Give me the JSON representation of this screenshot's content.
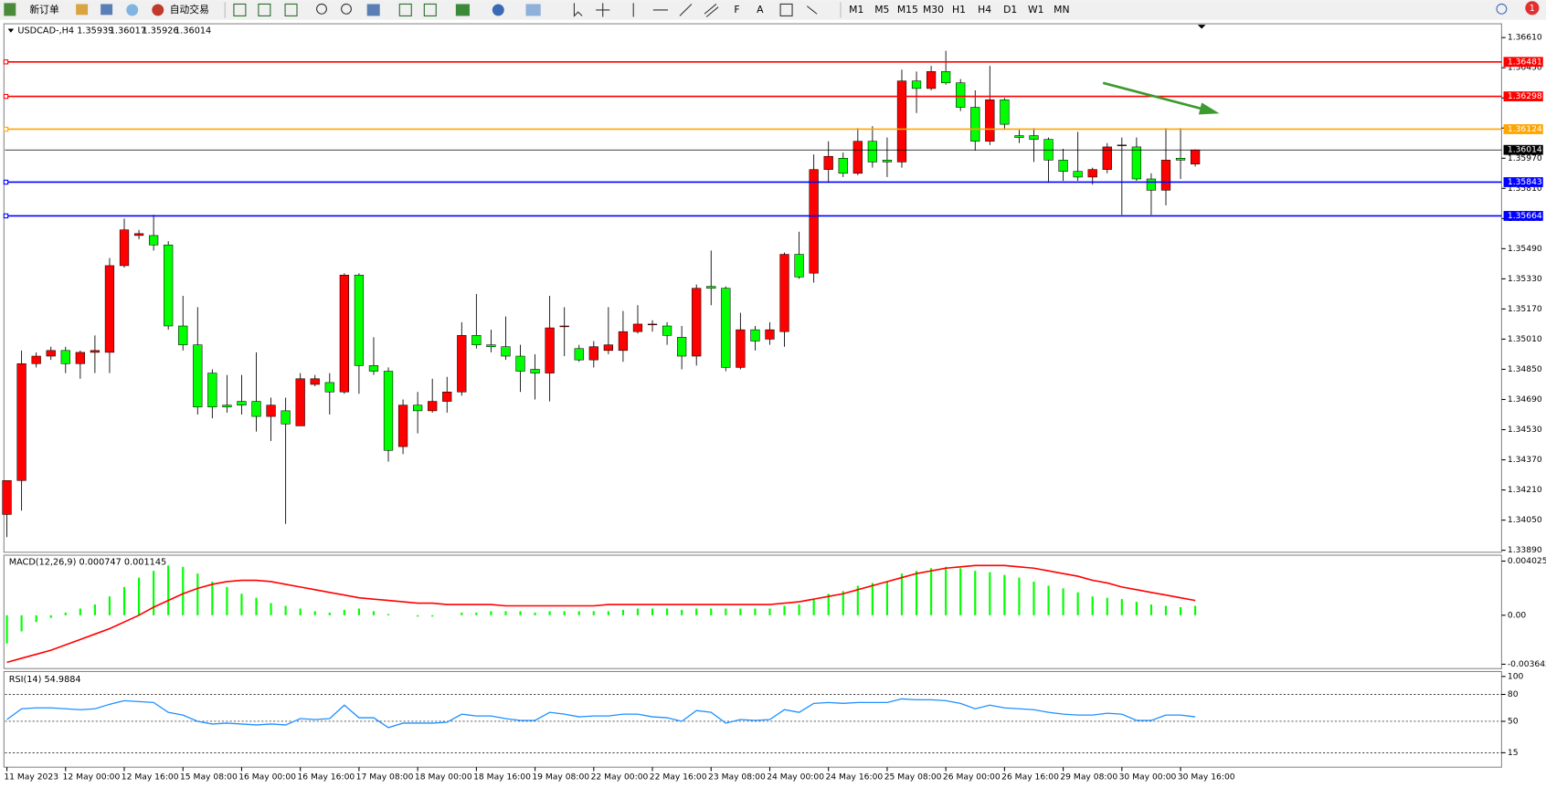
{
  "toolbar": {
    "new_order": "新订单",
    "auto_trading": "自动交易",
    "timeframes": [
      "M1",
      "M5",
      "M15",
      "M30",
      "H1",
      "H4",
      "D1",
      "W1",
      "MN"
    ],
    "notifications": 1
  },
  "chart_data": [
    {
      "type": "candlestick",
      "title": "USDCAD-,H4",
      "categories": [
        "11 May 2023",
        null,
        null,
        null,
        "12 May 00:00",
        null,
        null,
        null,
        "12 May 16:00",
        null,
        null,
        null,
        "15 May 08:00",
        null,
        null,
        null,
        "16 May 00:00",
        null,
        null,
        null,
        "16 May 16:00",
        null,
        null,
        null,
        "17 May 08:00",
        null,
        null,
        null,
        "18 May 00:00",
        null,
        null,
        null,
        "18 May 16:00",
        null,
        null,
        null,
        "19 May 08:00",
        null,
        null,
        null,
        "22 May 00:00",
        null,
        null,
        null,
        "22 May 16:00",
        null,
        null,
        null,
        "23 May 08:00",
        null,
        null,
        null,
        "24 May 00:00",
        null,
        null,
        null,
        "24 May 16:00",
        null,
        null,
        null,
        "25 May 08:00",
        null,
        null,
        null,
        "26 May 00:00",
        null,
        null,
        null,
        "26 May 16:00",
        null,
        null,
        null,
        "29 May 08:00",
        null,
        null,
        null,
        "30 May 00:00",
        null,
        null,
        null,
        "30 May 16:00",
        null
      ],
      "open": [
        1.3408,
        1.3426,
        1.3488,
        1.3492,
        1.3495,
        1.3488,
        1.3494,
        1.3494,
        1.354,
        1.3556,
        1.3556,
        1.3551,
        1.3508,
        1.3498,
        1.3483,
        1.3466,
        1.3468,
        1.3468,
        1.346,
        1.3463,
        1.3455,
        1.3477,
        1.3478,
        1.3473,
        1.3535,
        1.3487,
        1.3484,
        1.3444,
        1.3466,
        1.3463,
        1.3468,
        1.3473,
        1.3503,
        1.3498,
        1.3497,
        1.3492,
        1.3485,
        1.3483,
        1.3508,
        1.3496,
        1.349,
        1.3495,
        1.3495,
        1.3505,
        1.3509,
        1.3508,
        1.3502,
        1.3492,
        1.3529,
        1.3528,
        1.3486,
        1.3506,
        1.3501,
        1.3505,
        1.3546,
        1.3536,
        1.3591,
        1.3597,
        1.3589,
        1.3606,
        1.3596,
        1.3595,
        1.3638,
        1.3634,
        1.3643,
        1.3637,
        1.3624,
        1.3606,
        1.3628,
        1.3609,
        1.3609,
        1.3607,
        1.3596,
        1.359,
        1.3587,
        1.3591,
        1.3604,
        1.3603,
        1.3586,
        1.358,
        1.3597,
        1.35939
      ],
      "high": [
        1.3426,
        1.3495,
        1.3494,
        1.3497,
        1.3497,
        1.3495,
        1.3503,
        1.3544,
        1.3565,
        1.3559,
        1.3567,
        1.3553,
        1.3524,
        1.3518,
        1.3485,
        1.3482,
        1.3482,
        1.3494,
        1.347,
        1.347,
        1.3483,
        1.3482,
        1.3483,
        1.3536,
        1.3536,
        1.3502,
        1.3486,
        1.3469,
        1.3473,
        1.348,
        1.3481,
        1.351,
        1.3525,
        1.3506,
        1.3513,
        1.3498,
        1.3493,
        1.3524,
        1.3518,
        1.3498,
        1.35,
        1.3518,
        1.3516,
        1.3519,
        1.3511,
        1.351,
        1.3508,
        1.353,
        1.3548,
        1.3529,
        1.3515,
        1.3508,
        1.351,
        1.3547,
        1.3558,
        1.3599,
        1.3606,
        1.36,
        1.3613,
        1.3614,
        1.3608,
        1.3644,
        1.3643,
        1.3646,
        1.3654,
        1.3639,
        1.3633,
        1.3646,
        1.3629,
        1.3612,
        1.3613,
        1.3608,
        1.3602,
        1.3611,
        1.3592,
        1.3605,
        1.3608,
        1.3608,
        1.3589,
        1.3613,
        1.3613,
        1.36017
      ],
      "low": [
        1.3396,
        1.341,
        1.3486,
        1.349,
        1.3483,
        1.348,
        1.3483,
        1.3483,
        1.3539,
        1.3554,
        1.3548,
        1.3506,
        1.3495,
        1.3461,
        1.3459,
        1.3462,
        1.3461,
        1.3452,
        1.3447,
        1.3403,
        1.3455,
        1.3476,
        1.3461,
        1.3472,
        1.3472,
        1.3482,
        1.3436,
        1.344,
        1.3451,
        1.3462,
        1.3462,
        1.3471,
        1.3496,
        1.3494,
        1.349,
        1.3473,
        1.3469,
        1.3468,
        1.3492,
        1.3489,
        1.3486,
        1.3493,
        1.3489,
        1.3504,
        1.3505,
        1.3498,
        1.3485,
        1.3487,
        1.3519,
        1.3484,
        1.3485,
        1.3495,
        1.3498,
        1.3497,
        1.3533,
        1.3531,
        1.3584,
        1.3587,
        1.3588,
        1.3592,
        1.3587,
        1.3592,
        1.3621,
        1.3633,
        1.3636,
        1.3622,
        1.3601,
        1.3604,
        1.3612,
        1.3605,
        1.3595,
        1.3584,
        1.3585,
        1.3585,
        1.3583,
        1.3589,
        1.3567,
        1.3585,
        1.3567,
        1.3572,
        1.3586,
        1.35926
      ],
      "close": [
        1.3426,
        1.3488,
        1.3492,
        1.3495,
        1.3488,
        1.3494,
        1.3495,
        1.354,
        1.3559,
        1.3557,
        1.3551,
        1.3508,
        1.3498,
        1.3465,
        1.3465,
        1.3465,
        1.3466,
        1.346,
        1.3466,
        1.3456,
        1.348,
        1.348,
        1.3473,
        1.3535,
        1.3487,
        1.3484,
        1.3442,
        1.3466,
        1.3463,
        1.3468,
        1.3473,
        1.3503,
        1.3498,
        1.3497,
        1.3492,
        1.3484,
        1.3483,
        1.3507,
        1.3508,
        1.349,
        1.3497,
        1.3498,
        1.3505,
        1.3509,
        1.3509,
        1.3503,
        1.3492,
        1.3528,
        1.3528,
        1.3486,
        1.3506,
        1.35,
        1.3506,
        1.3546,
        1.3534,
        1.3591,
        1.3598,
        1.3589,
        1.3606,
        1.3595,
        1.3595,
        1.3638,
        1.3634,
        1.3643,
        1.3637,
        1.3624,
        1.3606,
        1.3628,
        1.3615,
        1.3608,
        1.3607,
        1.3596,
        1.359,
        1.3587,
        1.3591,
        1.3603,
        1.3604,
        1.3586,
        1.358,
        1.3596,
        1.3596,
        1.36014
      ],
      "up_color": "#ff0000",
      "down_color": "#00ff00",
      "ylim": [
        1.3389,
        1.3661
      ],
      "yticks": [
        {
          "value": 1.3389,
          "label": "1.33890"
        },
        {
          "value": 1.3405,
          "label": "1.34050"
        },
        {
          "value": 1.3421,
          "label": "1.34210"
        },
        {
          "value": 1.3437,
          "label": "1.34370"
        },
        {
          "value": 1.3453,
          "label": "1.34530"
        },
        {
          "value": 1.3469,
          "label": "1.34690"
        },
        {
          "value": 1.3485,
          "label": "1.34850"
        },
        {
          "value": 1.3501,
          "label": "1.35010"
        },
        {
          "value": 1.3517,
          "label": "1.35170"
        },
        {
          "value": 1.3533,
          "label": "1.35330"
        },
        {
          "value": 1.3549,
          "label": "1.35490"
        },
        {
          "value": 1.3565,
          "label": "1.35650"
        },
        {
          "value": 1.3581,
          "label": "1.35810"
        },
        {
          "value": 1.3597,
          "label": "1.35970"
        },
        {
          "value": 1.3613,
          "label": "1.36130"
        },
        {
          "value": 1.3629,
          "label": "1.36290"
        },
        {
          "value": 1.3645,
          "label": "1.36450"
        },
        {
          "value": 1.3661,
          "label": "1.36610"
        }
      ],
      "levels": [
        {
          "value": 1.36481,
          "color": "#ff0000"
        },
        {
          "value": 1.36298,
          "color": "#ff0000"
        },
        {
          "value": 1.36124,
          "color": "#ffa500"
        },
        {
          "value": 1.35843,
          "color": "#0000ff"
        },
        {
          "value": 1.35664,
          "color": "#0000ff"
        }
      ],
      "price_line_color": "#000000"
    },
    {
      "type": "macd",
      "title": "MACD(12,26,9) 0.000747 0.001145",
      "series": [
        {
          "color": "#00ff00",
          "values": [
            -0.0021,
            -0.0012,
            -0.0005,
            -0.0002,
            0.0002,
            0.0005,
            0.0008,
            0.0014,
            0.0021,
            0.0028,
            0.0033,
            0.0037,
            0.0036,
            0.0031,
            0.0025,
            0.0021,
            0.0016,
            0.0013,
            0.0009,
            0.0007,
            0.0005,
            0.0003,
            0.0002,
            0.0004,
            0.0005,
            0.0003,
            0.0001,
            0,
            -0.0001,
            -0.0001,
            0,
            0.0002,
            0.0002,
            0.0003,
            0.0003,
            0.0003,
            0.0002,
            0.0003,
            0.0003,
            0.0003,
            0.0003,
            0.0003,
            0.0004,
            0.0005,
            0.0005,
            0.0005,
            0.0004,
            0.0005,
            0.0005,
            0.0005,
            0.0005,
            0.0005,
            0.0005,
            0.0007,
            0.0008,
            0.0012,
            0.0016,
            0.0018,
            0.0022,
            0.0024,
            0.0025,
            0.0031,
            0.0033,
            0.0035,
            0.0036,
            0.0035,
            0.0033,
            0.0032,
            0.003,
            0.0028,
            0.0025,
            0.0022,
            0.002,
            0.0017,
            0.0014,
            0.0013,
            0.0012,
            0.001,
            0.0008,
            0.0007,
            0.0006,
            0.0007
          ]
        },
        {
          "color": "#ff0000",
          "values": [
            -0.0035,
            -0.0032,
            -0.0029,
            -0.0026,
            -0.0022,
            -0.0018,
            -0.0014,
            -0.001,
            -0.0005,
            0,
            0.0006,
            0.0011,
            0.0016,
            0.002,
            0.0023,
            0.0025,
            0.0026,
            0.0026,
            0.0025,
            0.0023,
            0.0021,
            0.0019,
            0.0017,
            0.0015,
            0.0013,
            0.0012,
            0.0011,
            0.001,
            0.0009,
            0.0009,
            0.0008,
            0.0008,
            0.0008,
            0.0008,
            0.0007,
            0.0007,
            0.0007,
            0.0007,
            0.0007,
            0.0007,
            0.0007,
            0.0008,
            0.0008,
            0.0008,
            0.0008,
            0.0008,
            0.0008,
            0.0008,
            0.0008,
            0.0008,
            0.0008,
            0.0008,
            0.0008,
            0.0009,
            0.001,
            0.0012,
            0.0014,
            0.0016,
            0.0019,
            0.0022,
            0.0025,
            0.0028,
            0.0031,
            0.0033,
            0.0035,
            0.0036,
            0.0037,
            0.0037,
            0.0037,
            0.0036,
            0.0035,
            0.0033,
            0.0031,
            0.0029,
            0.0026,
            0.0024,
            0.0021,
            0.0019,
            0.0017,
            0.0015,
            0.0013,
            0.0011
          ]
        }
      ],
      "ylim": [
        -0.003642,
        0.004025
      ],
      "yticks": [
        0.004025,
        {
          "value": 0,
          "label": "0.00"
        },
        -0.003642
      ]
    },
    {
      "type": "rsi",
      "title": "RSI(14) 54.9884",
      "series": [
        {
          "color": "#1e90ff",
          "values": [
            52,
            64,
            65,
            65,
            64,
            63,
            64,
            69,
            73,
            72,
            71,
            60,
            57,
            50,
            47,
            48,
            47,
            46,
            47,
            46,
            53,
            52,
            53,
            68,
            54,
            54,
            43,
            48,
            48,
            48,
            49,
            58,
            56,
            56,
            53,
            51,
            51,
            60,
            58,
            55,
            56,
            56,
            58,
            58,
            55,
            54,
            50,
            62,
            60,
            48,
            52,
            51,
            52,
            63,
            60,
            70,
            71,
            70,
            71,
            71,
            71,
            75,
            74,
            74,
            73,
            70,
            64,
            68,
            65,
            64,
            63,
            60,
            58,
            57,
            57,
            59,
            58,
            51,
            51,
            57,
            57,
            55
          ]
        }
      ],
      "ylim": [
        0,
        100
      ],
      "yticks": [
        100,
        80,
        50,
        15
      ],
      "levels": [
        80,
        50,
        15
      ]
    }
  ]
}
